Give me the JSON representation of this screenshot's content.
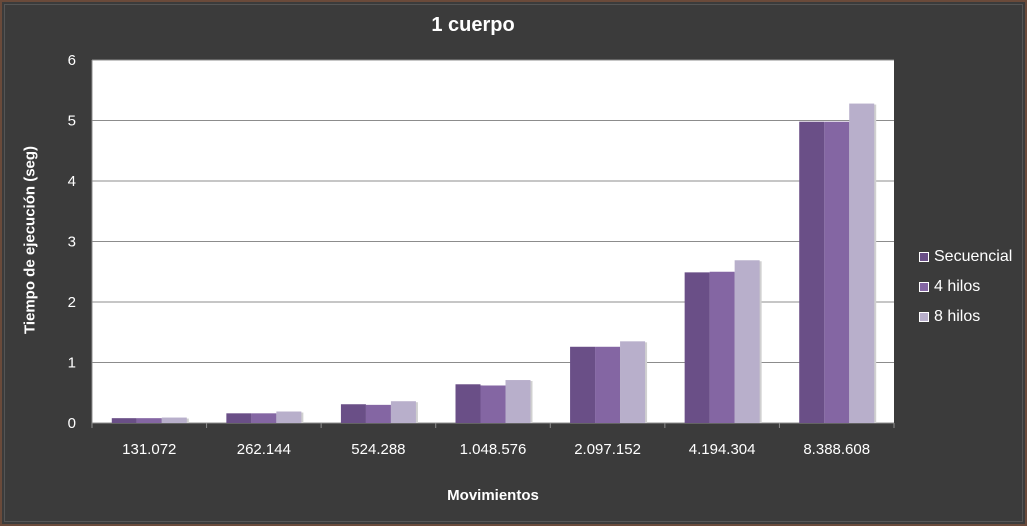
{
  "chart_data": {
    "type": "bar",
    "title": "1 cuerpo",
    "xlabel": "Movimientos",
    "ylabel": "Tiempo de ejecución (seg)",
    "categories": [
      "131.072",
      "262.144",
      "524.288",
      "1.048.576",
      "2.097.152",
      "4.194.304",
      "8.388.608"
    ],
    "series": [
      {
        "name": "Secuencial",
        "color": "#6a4f87",
        "values": [
          0.08,
          0.16,
          0.31,
          0.64,
          1.26,
          2.49,
          4.98
        ]
      },
      {
        "name": "4 hilos",
        "color": "#8466a3",
        "values": [
          0.08,
          0.16,
          0.3,
          0.62,
          1.26,
          2.5,
          4.98
        ]
      },
      {
        "name": "8 hilos",
        "color": "#b8afcb",
        "values": [
          0.09,
          0.19,
          0.36,
          0.71,
          1.35,
          2.69,
          5.28
        ]
      }
    ],
    "ylim": [
      0,
      6
    ],
    "yticks": [
      "0",
      "1",
      "2",
      "3",
      "4",
      "5",
      "6"
    ],
    "grid": true,
    "legend_position": "right"
  }
}
